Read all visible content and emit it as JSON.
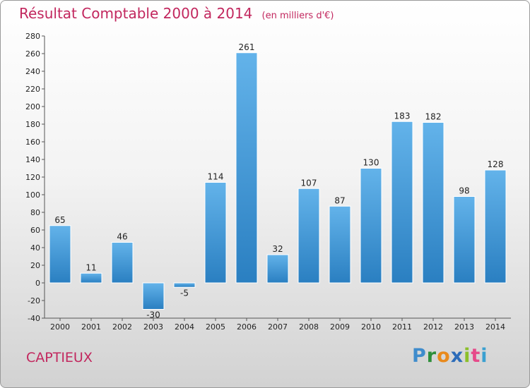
{
  "title": "Résultat Comptable 2000 à 2014",
  "unit": "(en milliers d'€)",
  "commune": "CAPTIEUX",
  "logo": {
    "letters": [
      "P",
      "r",
      "o",
      "x",
      "i",
      "t",
      "i"
    ],
    "colors": [
      "#3f8ccc",
      "#2e8f3a",
      "#e98a1c",
      "#2c6cb9",
      "#8cbf2a",
      "#e64b8a",
      "#3aa0d0"
    ]
  },
  "chart_data": {
    "type": "bar",
    "title": "Résultat Comptable 2000 à 2014",
    "ylabel": "(en milliers d'€)",
    "xlabel": "",
    "categories": [
      "2000",
      "2001",
      "2002",
      "2003",
      "2004",
      "2005",
      "2006",
      "2007",
      "2008",
      "2009",
      "2010",
      "2011",
      "2012",
      "2013",
      "2014"
    ],
    "values": [
      65,
      11,
      46,
      -30,
      -5,
      114,
      261,
      32,
      107,
      87,
      130,
      183,
      182,
      98,
      128
    ],
    "ylim": [
      -40,
      280
    ],
    "yticks": [
      -40,
      -20,
      0,
      20,
      40,
      60,
      80,
      100,
      120,
      140,
      160,
      180,
      200,
      220,
      240,
      260,
      280
    ],
    "grid": false,
    "colors": {
      "bar_light": "#63b3ea",
      "bar_dark": "#2a7fc1",
      "axis": "#555555"
    }
  }
}
